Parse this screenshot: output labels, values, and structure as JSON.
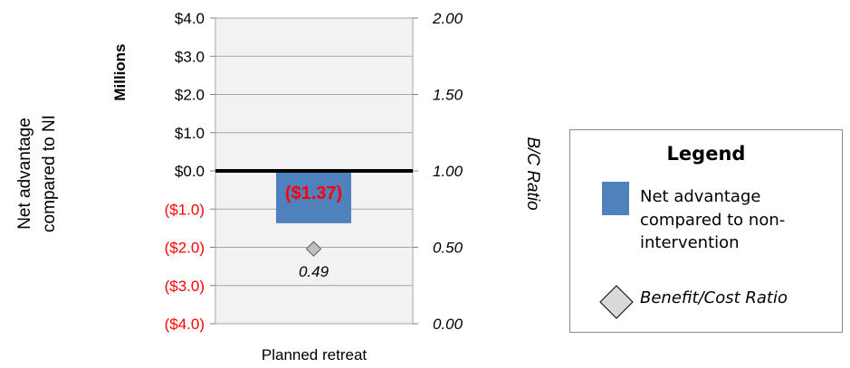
{
  "chart_data": {
    "type": "bar",
    "categories": [
      "Planned retreat"
    ],
    "series": [
      {
        "name": "Net advantage compared to non-intervention",
        "values": [
          -1.37
        ],
        "color": "#4f81bd",
        "data_label": "($1.37)",
        "data_label_color": "#ff0000"
      },
      {
        "name": "Benefit/Cost Ratio",
        "values": [
          0.49
        ],
        "axis": "secondary",
        "marker": "diamond",
        "color": "#bfbfbf",
        "data_label": "0.49"
      }
    ],
    "y_axis": {
      "label": "Net advantage compared to NI",
      "unit_label": "Millions",
      "ylim": [
        -4.0,
        4.0
      ],
      "ticks": [
        4.0,
        3.0,
        2.0,
        1.0,
        0.0,
        -1.0,
        -2.0,
        -3.0,
        -4.0
      ],
      "tick_labels": [
        "$4.0",
        "$3.0",
        "$2.0",
        "$1.0",
        "$0.0",
        "($1.0)",
        "($2.0)",
        "($3.0)",
        "($4.0)"
      ],
      "negative_color": "#ff0000"
    },
    "y2_axis": {
      "label": "B/C Ratio",
      "ylim": [
        0.0,
        2.0
      ],
      "ticks": [
        2.0,
        1.5,
        1.0,
        0.5,
        0.0
      ],
      "tick_labels": [
        "2.00",
        "1.50",
        "1.00",
        "0.50",
        "0.00"
      ]
    },
    "grid": true,
    "legend_position": "right",
    "legend": {
      "title": "Legend",
      "items": [
        {
          "label": "Net advantage compared to non-intervention",
          "swatch": "bar",
          "color": "#4f81bd"
        },
        {
          "label": "Benefit/Cost Ratio",
          "swatch": "diamond",
          "color": "#d9d9d9"
        }
      ]
    }
  }
}
